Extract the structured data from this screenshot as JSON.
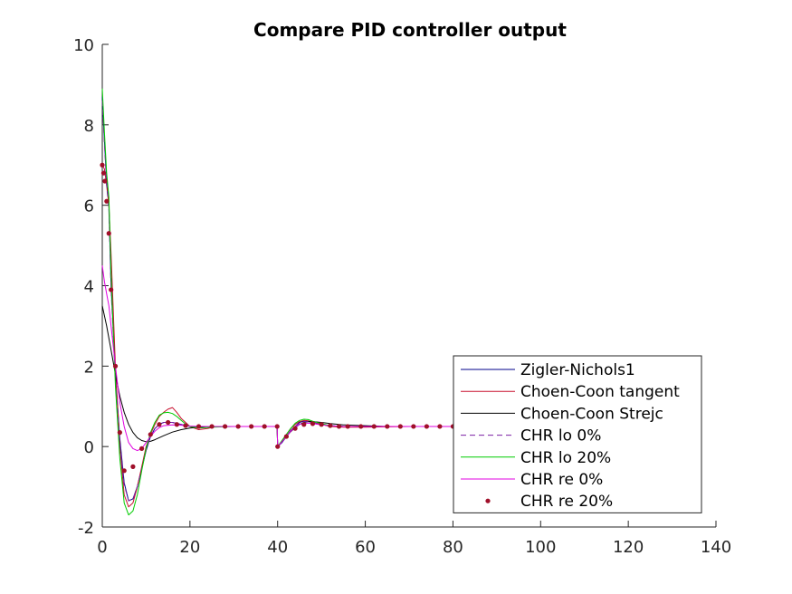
{
  "chart_data": {
    "type": "line",
    "title": "Compare PID controller output",
    "xlabel": "",
    "ylabel": "",
    "xlim": [
      0,
      140
    ],
    "ylim": [
      -2,
      10
    ],
    "xticks": [
      0,
      20,
      40,
      60,
      80,
      100,
      120,
      140
    ],
    "yticks": [
      -2,
      0,
      2,
      4,
      6,
      8,
      10
    ],
    "grid": false,
    "legend_position": "bottom-right",
    "series": [
      {
        "name": "Zigler-Nichols1",
        "color": "#00008b",
        "style": "solid",
        "x": [
          0,
          0.5,
          1,
          1.5,
          2,
          3,
          4,
          5,
          6,
          7,
          8,
          9,
          10,
          11,
          12,
          13,
          14,
          16,
          18,
          20,
          22,
          25,
          30,
          35,
          39.9,
          40,
          41,
          42,
          43,
          44,
          45,
          46,
          47,
          48,
          50,
          52,
          55,
          60,
          70,
          80
        ],
        "y": [
          8.7,
          7.6,
          6.6,
          6.0,
          4.0,
          1.8,
          0.2,
          -0.9,
          -1.35,
          -1.3,
          -1.0,
          -0.55,
          -0.1,
          0.25,
          0.45,
          0.55,
          0.6,
          0.6,
          0.55,
          0.5,
          0.5,
          0.5,
          0.5,
          0.5,
          0.5,
          0.0,
          0.1,
          0.25,
          0.4,
          0.5,
          0.6,
          0.63,
          0.62,
          0.6,
          0.55,
          0.52,
          0.5,
          0.5,
          0.5,
          0.5
        ]
      },
      {
        "name": "Choen-Coon tangent",
        "color": "#c8102e",
        "style": "solid",
        "x": [
          0,
          0.5,
          1,
          1.5,
          2,
          3,
          4,
          5,
          6,
          7,
          8,
          9,
          10,
          11,
          12,
          13,
          14,
          15,
          16,
          17,
          18,
          20,
          22,
          24,
          26,
          28,
          30,
          35,
          39.9,
          40,
          41,
          42,
          43,
          44,
          45,
          46,
          47,
          48,
          50,
          52,
          55,
          60,
          70,
          80
        ],
        "y": [
          7.0,
          6.9,
          6.5,
          6.0,
          4.8,
          2.0,
          0.0,
          -1.2,
          -1.5,
          -1.4,
          -1.0,
          -0.5,
          0.0,
          0.3,
          0.55,
          0.75,
          0.85,
          0.93,
          0.97,
          0.85,
          0.7,
          0.5,
          0.42,
          0.45,
          0.5,
          0.5,
          0.5,
          0.5,
          0.5,
          0.0,
          0.15,
          0.3,
          0.45,
          0.55,
          0.62,
          0.65,
          0.64,
          0.6,
          0.55,
          0.5,
          0.48,
          0.48,
          0.5,
          0.5
        ]
      },
      {
        "name": "Choen-Coon Strejc",
        "color": "#000000",
        "style": "solid",
        "x": [
          0,
          1,
          2,
          3,
          4,
          5,
          6,
          7,
          8,
          9,
          10,
          11,
          12,
          14,
          16,
          18,
          20,
          22,
          25,
          30,
          35,
          39.9,
          40,
          41,
          42,
          43,
          44,
          45,
          46,
          47,
          48,
          50,
          52,
          55,
          60,
          65,
          70,
          80
        ],
        "y": [
          3.5,
          3.0,
          2.4,
          1.8,
          1.25,
          0.85,
          0.55,
          0.35,
          0.22,
          0.15,
          0.12,
          0.13,
          0.17,
          0.27,
          0.36,
          0.42,
          0.46,
          0.48,
          0.5,
          0.5,
          0.5,
          0.5,
          0.0,
          0.12,
          0.25,
          0.37,
          0.47,
          0.55,
          0.6,
          0.62,
          0.62,
          0.6,
          0.57,
          0.54,
          0.52,
          0.5,
          0.5,
          0.5
        ]
      },
      {
        "name": "CHR lo 0%",
        "color": "#7b1fa2",
        "style": "dashed",
        "x": [
          0,
          0.5,
          1,
          1.5,
          2,
          3,
          4,
          5,
          6,
          7,
          8,
          9,
          10,
          11,
          12,
          13,
          14,
          16,
          18,
          20,
          22,
          25,
          30,
          35,
          39.9,
          40,
          41,
          42,
          43,
          44,
          45,
          46,
          47,
          48,
          50,
          52,
          55,
          60,
          70,
          80
        ],
        "y": [
          8.6,
          7.5,
          6.5,
          5.9,
          3.9,
          1.7,
          0.1,
          -0.95,
          -1.35,
          -1.3,
          -1.0,
          -0.55,
          -0.1,
          0.25,
          0.45,
          0.55,
          0.6,
          0.6,
          0.55,
          0.5,
          0.5,
          0.5,
          0.5,
          0.5,
          0.5,
          0.0,
          0.1,
          0.25,
          0.4,
          0.5,
          0.58,
          0.62,
          0.62,
          0.6,
          0.55,
          0.52,
          0.5,
          0.5,
          0.5,
          0.5
        ]
      },
      {
        "name": "CHR lo 20%",
        "color": "#00cc00",
        "style": "solid",
        "x": [
          0,
          0.5,
          1,
          1.5,
          2,
          3,
          4,
          5,
          6,
          7,
          8,
          9,
          10,
          11,
          12,
          13,
          14,
          15,
          16,
          17,
          18,
          19,
          20,
          22,
          25,
          30,
          35,
          39.9,
          40,
          41,
          42,
          43,
          44,
          45,
          46,
          47,
          48,
          50,
          52,
          55,
          60,
          70,
          80
        ],
        "y": [
          8.9,
          7.8,
          6.8,
          6.2,
          4.3,
          1.5,
          -0.3,
          -1.4,
          -1.7,
          -1.6,
          -1.2,
          -0.6,
          -0.05,
          0.35,
          0.6,
          0.78,
          0.84,
          0.85,
          0.82,
          0.75,
          0.65,
          0.56,
          0.5,
          0.46,
          0.48,
          0.5,
          0.5,
          0.5,
          0.0,
          0.15,
          0.3,
          0.45,
          0.58,
          0.65,
          0.68,
          0.67,
          0.63,
          0.57,
          0.52,
          0.5,
          0.5,
          0.5,
          0.5
        ]
      },
      {
        "name": "CHR re 0%",
        "color": "#e000e0",
        "style": "solid",
        "x": [
          0,
          0.5,
          1,
          1.5,
          2,
          3,
          4,
          5,
          6,
          7,
          8,
          9,
          10,
          11,
          12,
          13,
          14,
          16,
          18,
          20,
          22,
          25,
          30,
          35,
          39.9,
          40,
          41,
          42,
          43,
          44,
          45,
          46,
          47,
          48,
          50,
          52,
          55,
          60,
          70,
          80
        ],
        "y": [
          4.5,
          4.1,
          3.8,
          3.5,
          3.0,
          2.0,
          1.1,
          0.5,
          0.1,
          -0.05,
          -0.1,
          -0.05,
          0.1,
          0.25,
          0.38,
          0.47,
          0.52,
          0.54,
          0.53,
          0.51,
          0.5,
          0.5,
          0.5,
          0.5,
          0.5,
          0.0,
          0.12,
          0.25,
          0.38,
          0.48,
          0.55,
          0.58,
          0.58,
          0.57,
          0.54,
          0.52,
          0.5,
          0.5,
          0.5,
          0.5
        ]
      },
      {
        "name": "CHR re 20%",
        "color": "#a0102a",
        "style": "dots",
        "x": [
          0,
          0.3,
          0.6,
          1,
          1.5,
          2,
          3,
          4,
          5,
          7,
          9,
          11,
          13,
          15,
          17,
          19,
          22,
          25,
          28,
          31,
          34,
          37,
          39.9,
          40,
          42,
          44,
          46,
          48,
          50,
          52,
          54,
          56,
          59,
          62,
          65,
          68,
          71,
          74,
          77,
          80
        ],
        "y": [
          7.0,
          6.8,
          6.6,
          6.1,
          5.3,
          3.9,
          2.0,
          0.35,
          -0.6,
          -0.5,
          -0.05,
          0.3,
          0.55,
          0.6,
          0.55,
          0.52,
          0.5,
          0.5,
          0.5,
          0.5,
          0.5,
          0.5,
          0.5,
          0.0,
          0.25,
          0.45,
          0.55,
          0.57,
          0.55,
          0.52,
          0.5,
          0.5,
          0.5,
          0.5,
          0.5,
          0.5,
          0.5,
          0.5,
          0.5,
          0.5
        ]
      }
    ]
  }
}
